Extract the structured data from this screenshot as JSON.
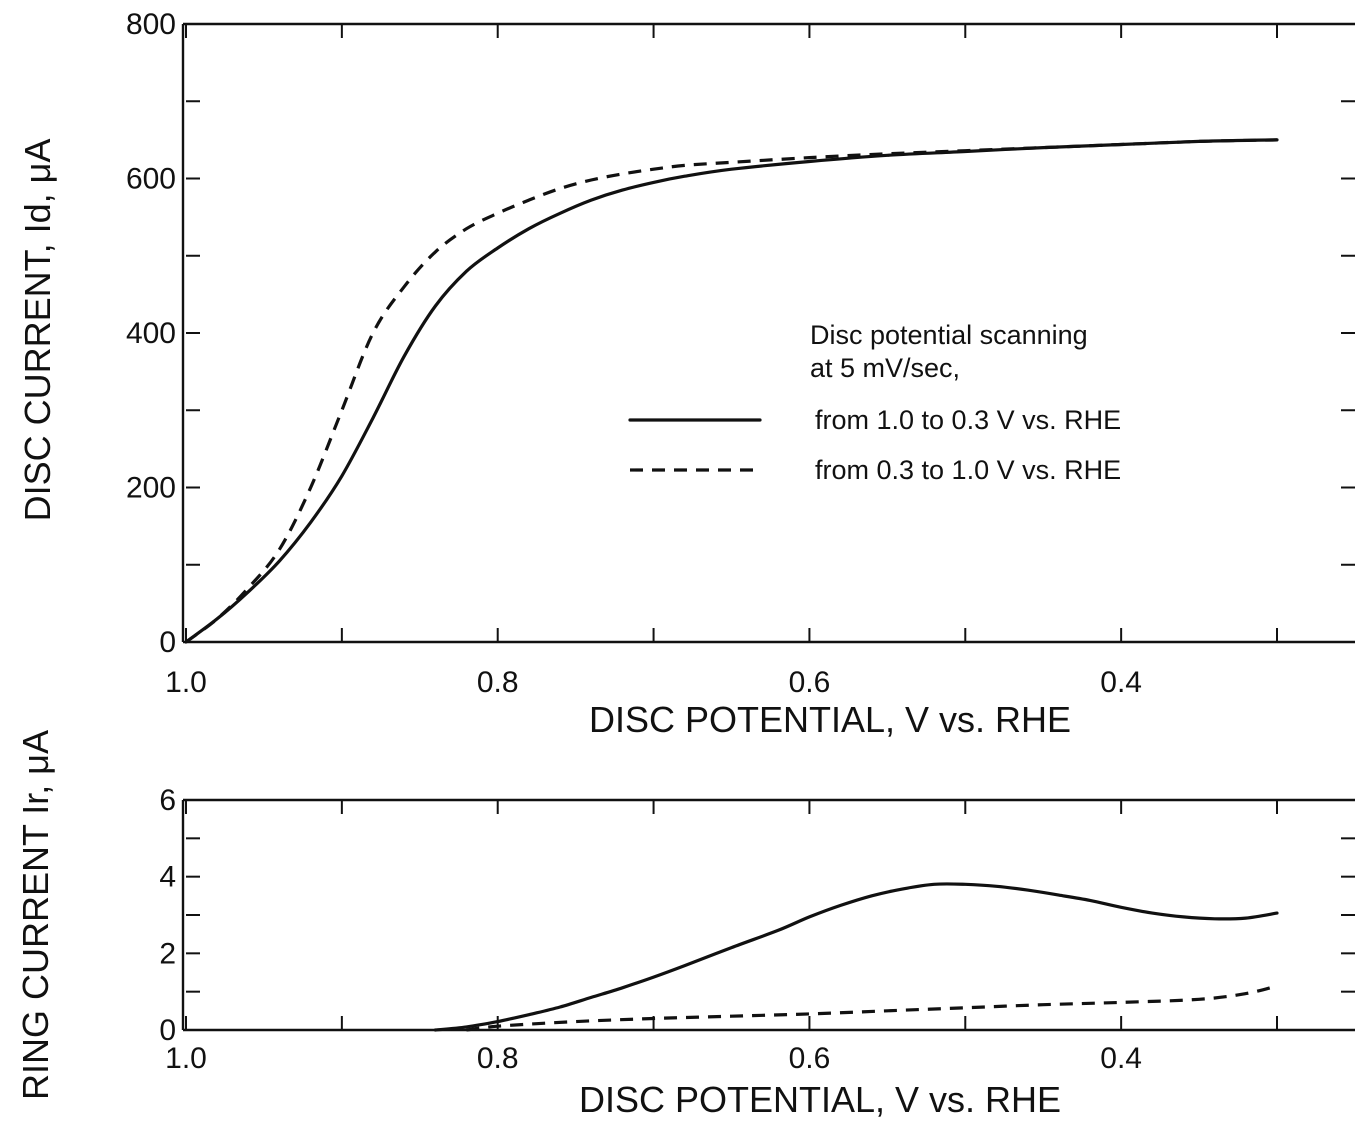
{
  "chart_data": [
    {
      "type": "line",
      "xlabel": "DISC POTENTIAL, V vs. RHE",
      "ylabel": "DISC CURRENT, Id, μA",
      "xlim": [
        1.0,
        0.3
      ],
      "ylim": [
        0,
        800
      ],
      "x_reversed": true,
      "x_tick_labels": [
        "1.0",
        "0.8",
        "0.6",
        "0.4"
      ],
      "x_tick_values": [
        1.0,
        0.8,
        0.6,
        0.4
      ],
      "y_tick_labels": [
        "0",
        "200",
        "400",
        "600",
        "800"
      ],
      "y_tick_values": [
        0,
        200,
        400,
        600,
        800
      ],
      "grid": false,
      "legend_position": "center-right",
      "legend_title": [
        "Disc potential scanning",
        "at  5 mV/sec,"
      ],
      "series": [
        {
          "name": "from 1.0 to 0.3  V vs. RHE",
          "style": "solid",
          "x": [
            1.0,
            0.98,
            0.96,
            0.94,
            0.92,
            0.9,
            0.88,
            0.86,
            0.84,
            0.82,
            0.8,
            0.78,
            0.76,
            0.74,
            0.72,
            0.7,
            0.68,
            0.65,
            0.6,
            0.55,
            0.5,
            0.45,
            0.4,
            0.35,
            0.3
          ],
          "y": [
            0,
            30,
            65,
            105,
            155,
            215,
            290,
            370,
            435,
            480,
            510,
            535,
            555,
            572,
            585,
            595,
            603,
            612,
            622,
            630,
            635,
            640,
            644,
            648,
            650
          ]
        },
        {
          "name": "from 0.3 to 1.0  V vs. RHE",
          "style": "dashed",
          "x": [
            1.0,
            0.98,
            0.96,
            0.94,
            0.92,
            0.9,
            0.88,
            0.86,
            0.84,
            0.82,
            0.8,
            0.78,
            0.76,
            0.74,
            0.72,
            0.7,
            0.68,
            0.65,
            0.6,
            0.55,
            0.5,
            0.45,
            0.4,
            0.35,
            0.3
          ],
          "y": [
            0,
            30,
            70,
            120,
            200,
            300,
            400,
            460,
            505,
            535,
            555,
            572,
            587,
            598,
            606,
            612,
            617,
            621,
            627,
            632,
            636,
            640,
            644,
            648,
            650
          ]
        }
      ]
    },
    {
      "type": "line",
      "xlabel": "DISC  POTENTIAL, V vs. RHE",
      "ylabel": "RING CURRENT Ir, μA",
      "xlim": [
        1.0,
        0.3
      ],
      "ylim": [
        0,
        6
      ],
      "x_reversed": true,
      "x_tick_labels": [
        "1.0",
        "0.8",
        "0.6",
        "0.4"
      ],
      "x_tick_values": [
        1.0,
        0.8,
        0.6,
        0.4
      ],
      "y_tick_labels": [
        "0",
        "2",
        "4",
        "6"
      ],
      "y_tick_values": [
        0,
        2,
        4,
        6
      ],
      "grid": false,
      "series": [
        {
          "name": "from 1.0 to 0.3  V vs. RHE",
          "style": "solid",
          "x": [
            0.84,
            0.82,
            0.8,
            0.78,
            0.76,
            0.74,
            0.72,
            0.7,
            0.68,
            0.65,
            0.62,
            0.6,
            0.58,
            0.56,
            0.54,
            0.52,
            0.5,
            0.48,
            0.46,
            0.44,
            0.42,
            0.4,
            0.38,
            0.36,
            0.34,
            0.32,
            0.3
          ],
          "y": [
            0,
            0.08,
            0.22,
            0.4,
            0.6,
            0.85,
            1.1,
            1.38,
            1.68,
            2.15,
            2.6,
            2.95,
            3.25,
            3.5,
            3.68,
            3.8,
            3.8,
            3.75,
            3.65,
            3.52,
            3.38,
            3.2,
            3.05,
            2.95,
            2.9,
            2.92,
            3.05
          ]
        },
        {
          "name": "from 0.3 to 1.0  V vs. RHE",
          "style": "dashed",
          "x": [
            0.82,
            0.8,
            0.75,
            0.7,
            0.65,
            0.6,
            0.55,
            0.5,
            0.45,
            0.4,
            0.35,
            0.32,
            0.3
          ],
          "y": [
            0,
            0.1,
            0.22,
            0.3,
            0.36,
            0.42,
            0.5,
            0.58,
            0.66,
            0.72,
            0.8,
            0.95,
            1.15
          ]
        }
      ]
    }
  ]
}
